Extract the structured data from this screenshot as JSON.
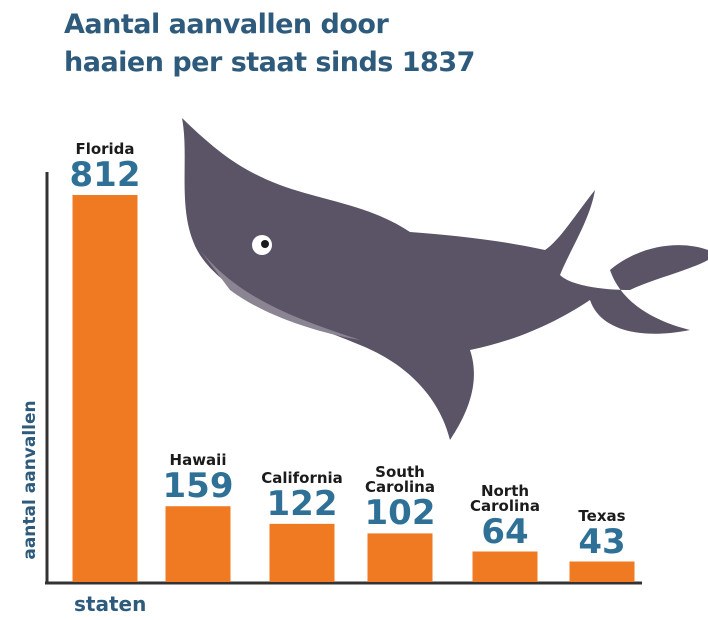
{
  "chart_data": {
    "type": "bar",
    "title": "Aantal aanvallen door haaien per staat sinds 1837",
    "y_label": "aantal aanvallen",
    "x_label": "staten",
    "categories": [
      "Florida",
      "Hawaii",
      "California",
      "South Carolina",
      "North Carolina",
      "Texas"
    ],
    "values": [
      812,
      159,
      122,
      102,
      64,
      43
    ],
    "color": "#f07a22"
  }
}
